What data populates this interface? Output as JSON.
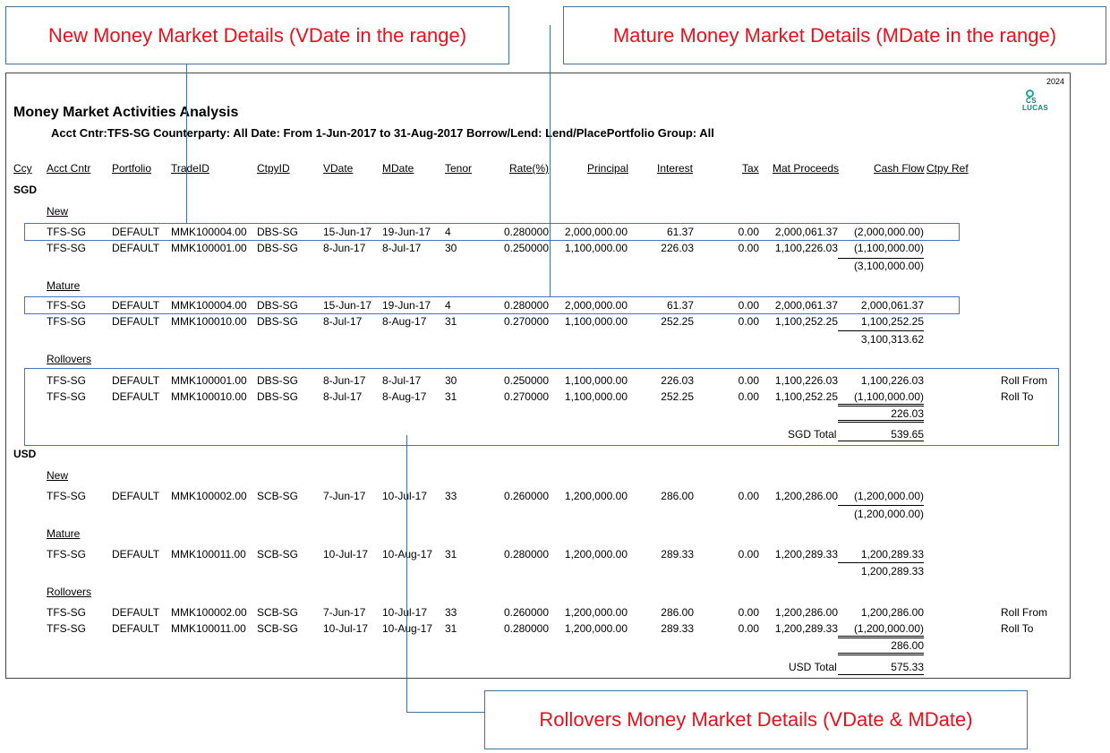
{
  "callouts": {
    "new": "New Money Market Details (VDate in the range)",
    "mature": "Mature Money Market Details (MDate in the range)",
    "rollovers": "Rollovers Money Market Details (VDate & MDate)"
  },
  "report": {
    "year": "2024",
    "logo_text": [
      "CS",
      "LUCAS"
    ],
    "title": "Money Market Activities Analysis",
    "subtitle": "Acct Cntr:TFS-SG Counterparty: All Date: From  1-Jun-2017 to  31-Aug-2017 Borrow/Lend: Lend/PlacePortfolio Group: All",
    "headers": [
      "Ccy",
      "Acct Cntr",
      "Portfolio",
      "TradeID",
      "CtpyID",
      "VDate",
      "MDate",
      "Tenor",
      "Rate(%)",
      "Principal",
      "Interest",
      "Tax",
      "Mat Proceeds",
      "Cash Flow",
      "Ctpy Ref"
    ],
    "sections": {
      "new": "New",
      "mature": "Mature",
      "rollovers": "Rollovers"
    },
    "sgd": {
      "ccy": "SGD",
      "new": [
        [
          "TFS-SG",
          "DEFAULT",
          "MMK100004.00",
          "DBS-SG",
          "15-Jun-17",
          "19-Jun-17",
          "4",
          "0.280000",
          "2,000,000.00",
          "61.37",
          "0.00",
          "2,000,061.37",
          "(2,000,000.00)",
          ""
        ],
        [
          "TFS-SG",
          "DEFAULT",
          "MMK100001.00",
          "DBS-SG",
          "8-Jun-17",
          "8-Jul-17",
          "30",
          "0.250000",
          "1,100,000.00",
          "226.03",
          "0.00",
          "1,100,226.03",
          "(1,100,000.00)",
          ""
        ]
      ],
      "new_total": "(3,100,000.00)",
      "mature": [
        [
          "TFS-SG",
          "DEFAULT",
          "MMK100004.00",
          "DBS-SG",
          "15-Jun-17",
          "19-Jun-17",
          "4",
          "0.280000",
          "2,000,000.00",
          "61.37",
          "0.00",
          "2,000,061.37",
          "2,000,061.37",
          ""
        ],
        [
          "TFS-SG",
          "DEFAULT",
          "MMK100010.00",
          "DBS-SG",
          "8-Jul-17",
          "8-Aug-17",
          "31",
          "0.270000",
          "1,100,000.00",
          "252.25",
          "0.00",
          "1,100,252.25",
          "1,100,252.25",
          ""
        ]
      ],
      "mature_total": "3,100,313.62",
      "rollovers": [
        [
          "TFS-SG",
          "DEFAULT",
          "MMK100001.00",
          "DBS-SG",
          "8-Jun-17",
          "8-Jul-17",
          "30",
          "0.250000",
          "1,100,000.00",
          "226.03",
          "0.00",
          "1,100,226.03",
          "1,100,226.03",
          "Roll From"
        ],
        [
          "TFS-SG",
          "DEFAULT",
          "MMK100010.00",
          "DBS-SG",
          "8-Jul-17",
          "8-Aug-17",
          "31",
          "0.270000",
          "1,100,000.00",
          "252.25",
          "0.00",
          "1,100,252.25",
          "(1,100,000.00)",
          "Roll To"
        ]
      ],
      "rollovers_total": "226.03",
      "total_label": "SGD Total",
      "total": "539.65"
    },
    "usd": {
      "ccy": "USD",
      "new": [
        [
          "TFS-SG",
          "DEFAULT",
          "MMK100002.00",
          "SCB-SG",
          "7-Jun-17",
          "10-Jul-17",
          "33",
          "0.260000",
          "1,200,000.00",
          "286.00",
          "0.00",
          "1,200,286.00",
          "(1,200,000.00)",
          ""
        ]
      ],
      "new_total": "(1,200,000.00)",
      "mature": [
        [
          "TFS-SG",
          "DEFAULT",
          "MMK100011.00",
          "SCB-SG",
          "10-Jul-17",
          "10-Aug-17",
          "31",
          "0.280000",
          "1,200,000.00",
          "289.33",
          "0.00",
          "1,200,289.33",
          "1,200,289.33",
          ""
        ]
      ],
      "mature_total": "1,200,289.33",
      "rollovers": [
        [
          "TFS-SG",
          "DEFAULT",
          "MMK100002.00",
          "SCB-SG",
          "7-Jun-17",
          "10-Jul-17",
          "33",
          "0.260000",
          "1,200,000.00",
          "286.00",
          "0.00",
          "1,200,286.00",
          "1,200,286.00",
          "Roll From"
        ],
        [
          "TFS-SG",
          "DEFAULT",
          "MMK100011.00",
          "SCB-SG",
          "10-Jul-17",
          "10-Aug-17",
          "31",
          "0.280000",
          "1,200,000.00",
          "289.33",
          "0.00",
          "1,200,289.33",
          "(1,200,000.00)",
          "Roll To"
        ]
      ],
      "rollovers_total": "286.00",
      "total_label": "USD Total",
      "total": "575.33"
    }
  },
  "colors": {
    "callout_text": "#e8101c",
    "box_border": "#4472c4",
    "leader": "#41719c",
    "logo": "#1aa69a"
  }
}
